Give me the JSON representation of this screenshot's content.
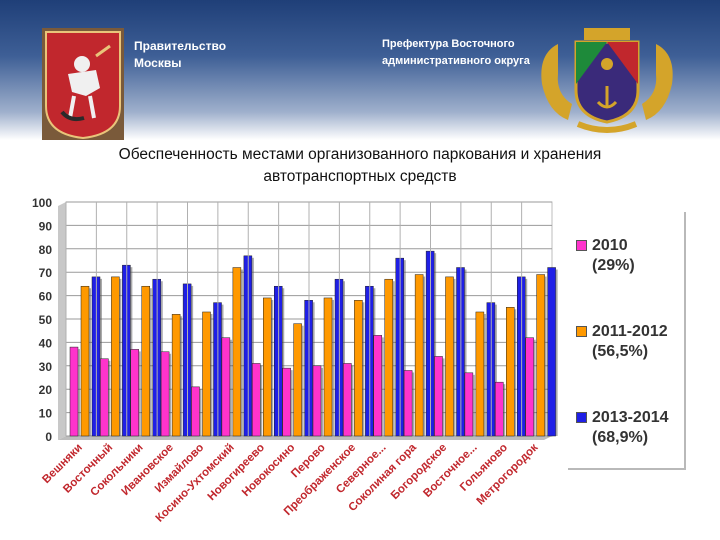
{
  "header": {
    "gov_title": "Правительство\nМосквы",
    "prefecture_title": "Префектура Восточного\nадминистративного округа"
  },
  "chart_data": {
    "type": "bar",
    "title": "Обеспеченность местами организованного паркования и хранения\nавтотранспортных средств",
    "categories": [
      "Вешняки",
      "Восточный",
      "Сокольники",
      "Ивановское",
      "Измайлово",
      "Косино-Ухтомский",
      "Новогиреево",
      "Новокосино",
      "Перово",
      "Преображенское",
      "Северное...",
      "Соколиная гора",
      "Богородское",
      "Восточное...",
      "Гольяново",
      "Метрогородок"
    ],
    "series": [
      {
        "name": "2010\n(29%)",
        "color": "#ff33cc",
        "values": [
          38,
          33,
          37,
          36,
          21,
          42,
          31,
          29,
          30,
          31,
          43,
          28,
          34,
          27,
          23,
          42
        ]
      },
      {
        "name": "2011-2012\n(56,5%)",
        "color": "#ff9900",
        "values": [
          64,
          68,
          64,
          52,
          53,
          72,
          59,
          48,
          59,
          58,
          67,
          69,
          68,
          53,
          55,
          69
        ]
      },
      {
        "name": "2013-2014\n(68,9%)",
        "color": "#1f1fe6",
        "values": [
          68,
          73,
          67,
          65,
          57,
          77,
          64,
          58,
          67,
          64,
          76,
          79,
          72,
          57,
          68,
          72
        ]
      }
    ],
    "yticks": [
      0,
      10,
      20,
      30,
      40,
      50,
      60,
      70,
      80,
      90,
      100
    ],
    "ylim": [
      0,
      100
    ],
    "grid": true,
    "legend_position": "right"
  }
}
